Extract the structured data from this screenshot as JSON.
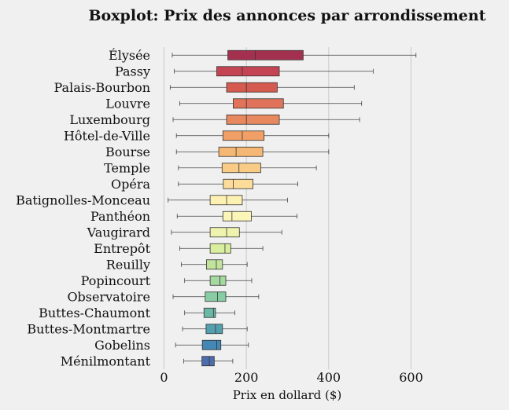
{
  "chart_data": {
    "type": "boxplot",
    "title": "Boxplot: Prix des annonces par arrondissement",
    "xlabel": "Prix en dollard ($)",
    "ylabel": "",
    "xlim": [
      -10,
      680
    ],
    "xticks": [
      0,
      200,
      400,
      600
    ],
    "grid": "vertical",
    "categories": [
      "Élysée",
      "Passy",
      "Palais-Bourbon",
      "Louvre",
      "Luxembourg",
      "Hôtel-de-Ville",
      "Bourse",
      "Temple",
      "Opéra",
      "Batignolles-Monceau",
      "Panthéon",
      "Vaugirard",
      "Entrepôt",
      "Reuilly",
      "Popincourt",
      "Observatoire",
      "Buttes-Chaumont",
      "Buttes-Montmartre",
      "Gobelins",
      "Ménilmontant"
    ],
    "boxes": [
      {
        "whislo": 20,
        "q1": 155,
        "med": 222,
        "q3": 338,
        "whishi": 612,
        "color": "#a3304f"
      },
      {
        "whislo": 25,
        "q1": 128,
        "med": 190,
        "q3": 280,
        "whishi": 508,
        "color": "#c54453"
      },
      {
        "whislo": 15,
        "q1": 152,
        "med": 200,
        "q3": 275,
        "whishi": 462,
        "color": "#d55a4f"
      },
      {
        "whislo": 38,
        "q1": 168,
        "med": 200,
        "q3": 290,
        "whishi": 480,
        "color": "#e0735a"
      },
      {
        "whislo": 22,
        "q1": 152,
        "med": 200,
        "q3": 280,
        "whishi": 475,
        "color": "#e8885e"
      },
      {
        "whislo": 30,
        "q1": 143,
        "med": 190,
        "q3": 243,
        "whishi": 400,
        "color": "#f0a066"
      },
      {
        "whislo": 30,
        "q1": 133,
        "med": 175,
        "q3": 240,
        "whishi": 400,
        "color": "#f5b774"
      },
      {
        "whislo": 35,
        "q1": 141,
        "med": 182,
        "q3": 235,
        "whishi": 370,
        "color": "#f8cb86"
      },
      {
        "whislo": 35,
        "q1": 144,
        "med": 168,
        "q3": 216,
        "whishi": 325,
        "color": "#fbdc9a"
      },
      {
        "whislo": 10,
        "q1": 112,
        "med": 152,
        "q3": 190,
        "whishi": 300,
        "color": "#fdf0b3"
      },
      {
        "whislo": 32,
        "q1": 143,
        "med": 165,
        "q3": 212,
        "whishi": 323,
        "color": "#fbf5b8"
      },
      {
        "whislo": 18,
        "q1": 112,
        "med": 152,
        "q3": 183,
        "whishi": 286,
        "color": "#eef4ad"
      },
      {
        "whislo": 38,
        "q1": 112,
        "med": 148,
        "q3": 162,
        "whishi": 240,
        "color": "#d9ee9e"
      },
      {
        "whislo": 42,
        "q1": 103,
        "med": 127,
        "q3": 142,
        "whishi": 202,
        "color": "#c1e39c"
      },
      {
        "whislo": 50,
        "q1": 112,
        "med": 136,
        "q3": 150,
        "whishi": 213,
        "color": "#a6d99f"
      },
      {
        "whislo": 22,
        "q1": 100,
        "med": 130,
        "q3": 150,
        "whishi": 230,
        "color": "#88cca4"
      },
      {
        "whislo": 50,
        "q1": 97,
        "med": 120,
        "q3": 125,
        "whishi": 172,
        "color": "#6cb7a6"
      },
      {
        "whislo": 45,
        "q1": 102,
        "med": 125,
        "q3": 142,
        "whishi": 202,
        "color": "#539fae"
      },
      {
        "whislo": 28,
        "q1": 93,
        "med": 128,
        "q3": 138,
        "whishi": 205,
        "color": "#4486b4"
      },
      {
        "whislo": 48,
        "q1": 92,
        "med": 110,
        "q3": 122,
        "whishi": 167,
        "color": "#4c6cac"
      }
    ]
  }
}
